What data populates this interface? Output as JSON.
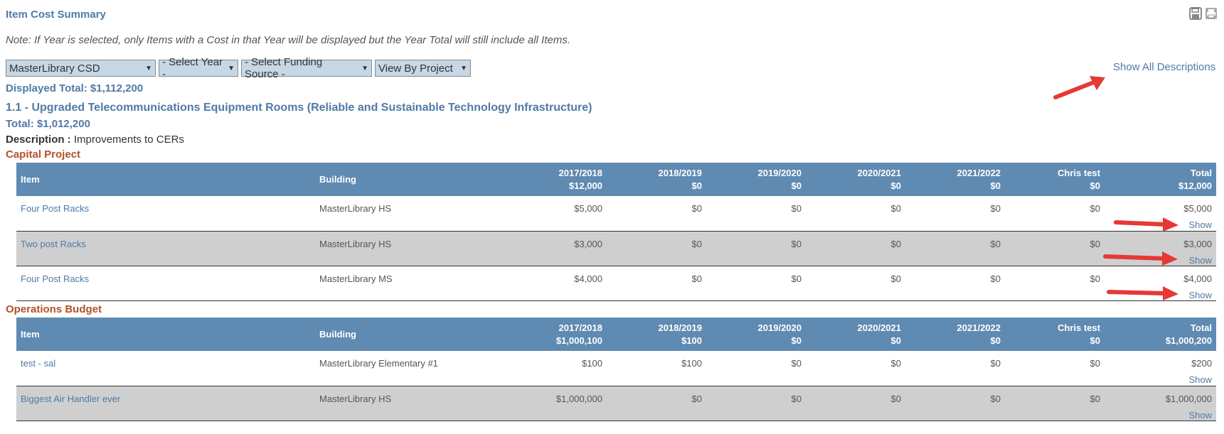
{
  "header": {
    "title": "Item Cost Summary",
    "save_icon": "save-icon",
    "print_icon": "print-icon",
    "note": "Note: If Year is selected, only Items with a Cost in that Year will be displayed but the Year Total will still include all Items."
  },
  "filters": {
    "district": "MasterLibrary CSD",
    "year": "- Select Year -",
    "funding": "- Select Funding Source -",
    "view": "View By Project"
  },
  "show_all_label": "Show All Descriptions",
  "displayed_total": "Displayed Total: $1,112,200",
  "project": {
    "title": "1.1 - Upgraded Telecommunications Equipment Rooms (Reliable and Sustainable Technology Infrastructure)",
    "total": "Total: $1,012,200",
    "description_label": "Description :",
    "description_value": "Improvements to CERs"
  },
  "columns": {
    "item": "Item",
    "building": "Building",
    "years": [
      "2017/2018",
      "2018/2019",
      "2019/2020",
      "2020/2021",
      "2021/2022",
      "Chris test",
      "Total"
    ]
  },
  "sections": [
    {
      "title": "Capital Project",
      "year_totals": [
        "$12,000",
        "$0",
        "$0",
        "$0",
        "$0",
        "$0",
        "$12,000"
      ],
      "rows": [
        {
          "item": "Four Post Racks",
          "building": "MasterLibrary HS",
          "values": [
            "$5,000",
            "$0",
            "$0",
            "$0",
            "$0",
            "$0",
            "$5,000"
          ],
          "show": "Show"
        },
        {
          "item": "Two post Racks",
          "building": "MasterLibrary HS",
          "values": [
            "$3,000",
            "$0",
            "$0",
            "$0",
            "$0",
            "$0",
            "$3,000"
          ],
          "show": "Show"
        },
        {
          "item": "Four Post Racks",
          "building": "MasterLibrary MS",
          "values": [
            "$4,000",
            "$0",
            "$0",
            "$0",
            "$0",
            "$0",
            "$4,000"
          ],
          "show": "Show"
        }
      ]
    },
    {
      "title": "Operations Budget",
      "year_totals": [
        "$1,000,100",
        "$100",
        "$0",
        "$0",
        "$0",
        "$0",
        "$1,000,200"
      ],
      "rows": [
        {
          "item": "test - sal",
          "building": "MasterLibrary Elementary #1",
          "values": [
            "$100",
            "$100",
            "$0",
            "$0",
            "$0",
            "$0",
            "$200"
          ],
          "show": "Show"
        },
        {
          "item": "Biggest Air Handler ever",
          "building": "MasterLibrary HS",
          "values": [
            "$1,000,000",
            "$0",
            "$0",
            "$0",
            "$0",
            "$0",
            "$1,000,000"
          ],
          "show": "Show"
        }
      ]
    }
  ],
  "colors": {
    "accent": "#4f7aa6",
    "header_bg": "#5f8ab2",
    "section_title": "#b0532a",
    "alt_row": "#cfcfcf",
    "arrow": "#e53935"
  }
}
